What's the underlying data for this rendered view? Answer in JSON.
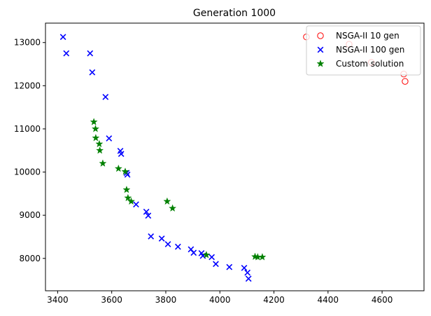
{
  "chart_data": {
    "type": "scatter",
    "title": "Generation 1000",
    "xlabel": "",
    "ylabel": "",
    "xlim": [
      3355,
      4755
    ],
    "ylim": [
      7250,
      13450
    ],
    "xticks": [
      3400,
      3600,
      3800,
      4000,
      4200,
      4400,
      4600
    ],
    "yticks": [
      8000,
      9000,
      10000,
      11000,
      12000,
      13000
    ],
    "grid": false,
    "legend_position": "top-right",
    "series": [
      {
        "name": "NSGA-II 10 gen",
        "marker": "circle-open",
        "color": "#ff0000",
        "points": [
          [
            4320,
            13130
          ],
          [
            4478,
            12960
          ],
          [
            4560,
            12540
          ],
          [
            4680,
            12270
          ],
          [
            4685,
            12100
          ]
        ]
      },
      {
        "name": "NSGA-II 100 gen",
        "marker": "x",
        "color": "#0000ff",
        "points": [
          [
            3420,
            13130
          ],
          [
            3432,
            12750
          ],
          [
            3520,
            12750
          ],
          [
            3528,
            12310
          ],
          [
            3577,
            11740
          ],
          [
            3590,
            10780
          ],
          [
            3632,
            10490
          ],
          [
            3635,
            10420
          ],
          [
            3655,
            9980
          ],
          [
            3658,
            9940
          ],
          [
            3690,
            9250
          ],
          [
            3728,
            9080
          ],
          [
            3735,
            8990
          ],
          [
            3745,
            8510
          ],
          [
            3785,
            8460
          ],
          [
            3808,
            8330
          ],
          [
            3845,
            8270
          ],
          [
            3893,
            8210
          ],
          [
            3903,
            8130
          ],
          [
            3932,
            8120
          ],
          [
            3937,
            8060
          ],
          [
            3970,
            8030
          ],
          [
            3985,
            7870
          ],
          [
            4035,
            7800
          ],
          [
            4090,
            7780
          ],
          [
            4102,
            7670
          ],
          [
            4106,
            7530
          ]
        ]
      },
      {
        "name": "Custom solution",
        "marker": "star",
        "color": "#008000",
        "points": [
          [
            3534,
            11160
          ],
          [
            3540,
            11000
          ],
          [
            3541,
            10790
          ],
          [
            3554,
            10650
          ],
          [
            3556,
            10500
          ],
          [
            3567,
            10200
          ],
          [
            3625,
            10080
          ],
          [
            3650,
            10010
          ],
          [
            3655,
            9590
          ],
          [
            3660,
            9400
          ],
          [
            3672,
            9320
          ],
          [
            3805,
            9320
          ],
          [
            3825,
            9160
          ],
          [
            3950,
            8080
          ],
          [
            4130,
            8040
          ],
          [
            4140,
            8030
          ],
          [
            4157,
            8030
          ]
        ]
      }
    ]
  }
}
